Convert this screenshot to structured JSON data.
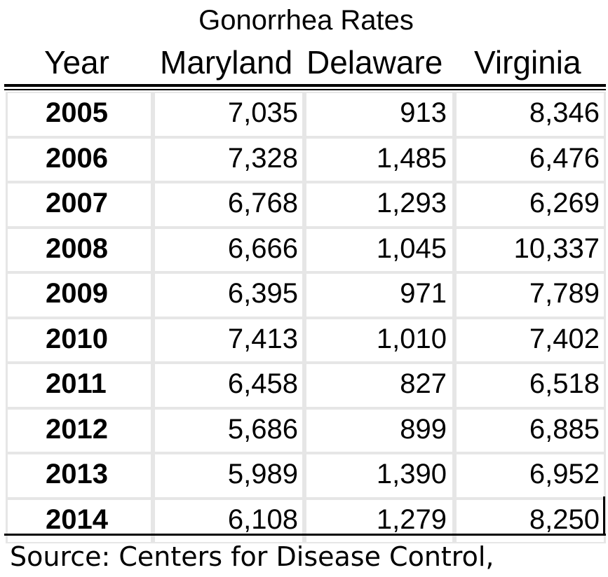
{
  "chart_data": {
    "type": "table",
    "title": "Gonorrhea Rates",
    "columns": [
      "Year",
      "Maryland",
      "Delaware",
      "Virginia"
    ],
    "rows": [
      {
        "year": "2005",
        "maryland": "7,035",
        "delaware": "913",
        "virginia": "8,346"
      },
      {
        "year": "2006",
        "maryland": "7,328",
        "delaware": "1,485",
        "virginia": "6,476"
      },
      {
        "year": "2007",
        "maryland": "6,768",
        "delaware": "1,293",
        "virginia": "6,269"
      },
      {
        "year": "2008",
        "maryland": "6,666",
        "delaware": "1,045",
        "virginia": "10,337"
      },
      {
        "year": "2009",
        "maryland": "6,395",
        "delaware": "971",
        "virginia": "7,789"
      },
      {
        "year": "2010",
        "maryland": "7,413",
        "delaware": "1,010",
        "virginia": "7,402"
      },
      {
        "year": "2011",
        "maryland": "6,458",
        "delaware": "827",
        "virginia": "6,518"
      },
      {
        "year": "2012",
        "maryland": "5,686",
        "delaware": "899",
        "virginia": "6,885"
      },
      {
        "year": "2013",
        "maryland": "5,989",
        "delaware": "1,390",
        "virginia": "6,952"
      },
      {
        "year": "2014",
        "maryland": "6,108",
        "delaware": "1,279",
        "virginia": "8,250"
      }
    ],
    "source": "Source: Centers for Disease Control,"
  }
}
